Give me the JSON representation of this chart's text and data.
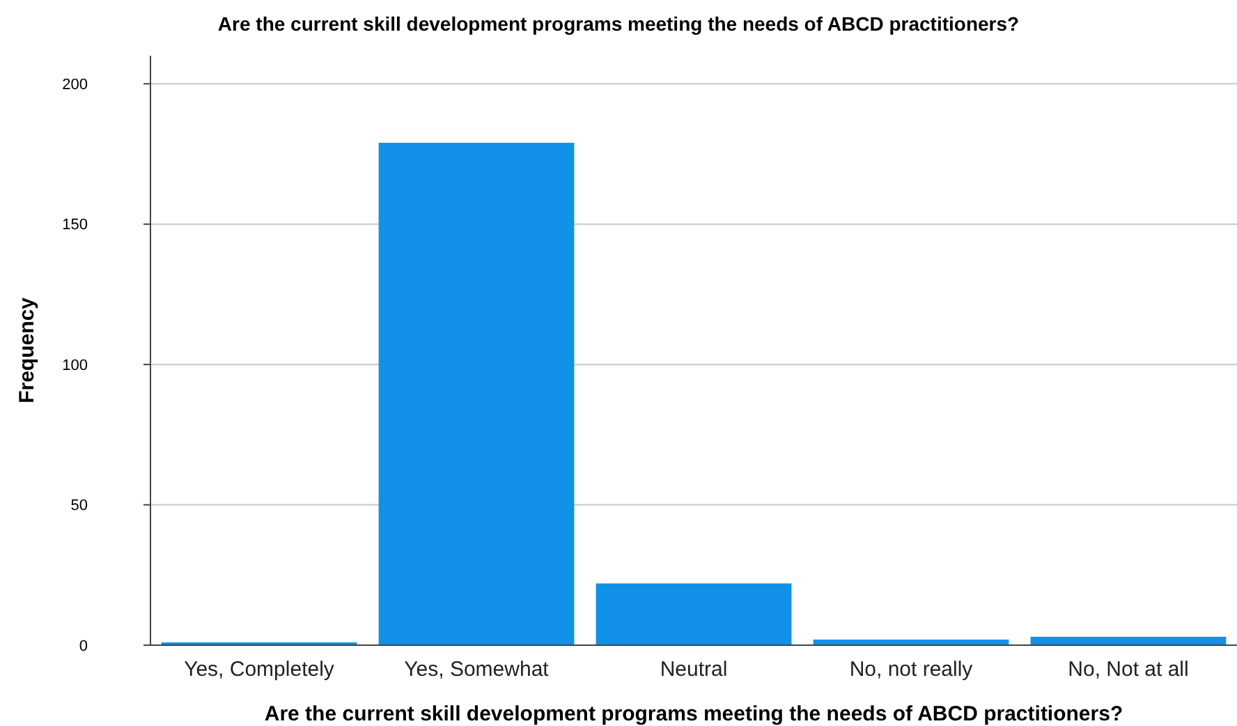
{
  "chart_data": {
    "type": "bar",
    "title": "Are the current skill development programs meeting the needs of ABCD practitioners?",
    "xlabel": "Are the current skill development programs meeting the needs of ABCD practitioners?",
    "ylabel": "Frequency",
    "categories": [
      "Yes, Completely",
      "Yes, Somewhat",
      "Neutral",
      "No, not really",
      "No, Not at all"
    ],
    "values": [
      1,
      179,
      22,
      2,
      3
    ],
    "color": "#1192e8",
    "ylim": [
      0,
      210
    ],
    "yticks": [
      0,
      50,
      100,
      150,
      200
    ],
    "grid": "y"
  }
}
